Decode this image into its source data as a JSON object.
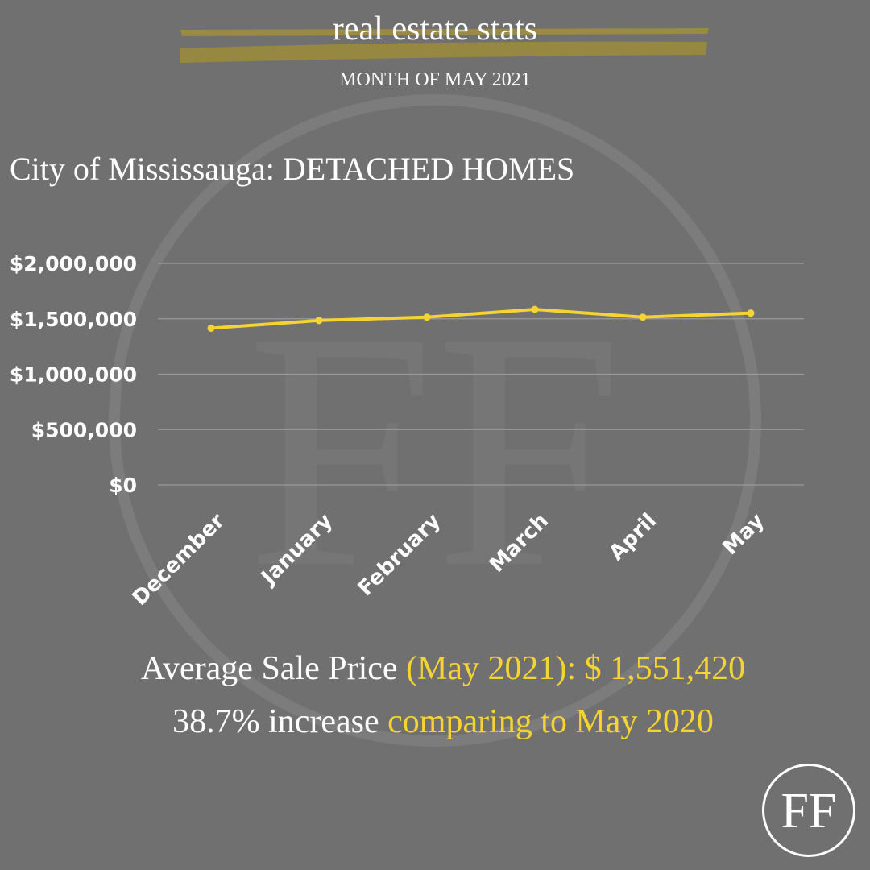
{
  "header": {
    "title": "real estate stats",
    "subtitle": "MONTH OF  MAY 2021"
  },
  "heading": "City of Mississauga:  DETACHED HOMES",
  "chart_data": {
    "type": "line",
    "categories": [
      "December",
      "January",
      "February",
      "March",
      "April",
      "May"
    ],
    "series": [
      {
        "values": [
          1415000,
          1485000,
          1515000,
          1585000,
          1515000,
          1551420
        ]
      }
    ],
    "ylim": [
      0,
      2000000
    ],
    "yticks": [
      0,
      500000,
      1000000,
      1500000,
      2000000
    ],
    "ytick_labels": [
      "$0",
      "$500,000",
      "$1,000,000",
      "$1,500,000",
      "$2,000,000"
    ],
    "grid": true,
    "line_color": "#f5d431"
  },
  "stats": {
    "line1_a": "Average Sale Price ",
    "line1_b": "(May 2021): $ 1,551,420",
    "line2_a": "38.7% increase ",
    "line2_b": "comparing to May 2020"
  },
  "colors": {
    "background": "#707070",
    "accent": "#f5d431",
    "brush": "#9a8a3c"
  },
  "logo_icon": "ff-monogram-logo"
}
